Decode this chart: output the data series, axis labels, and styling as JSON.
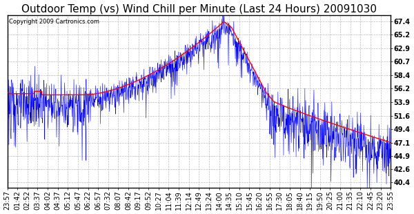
{
  "title": "Outdoor Temp (vs) Wind Chill per Minute (Last 24 Hours) 20091030",
  "copyright_text": "Copyright 2009 Cartronics.com",
  "y_ticks": [
    40.4,
    42.6,
    44.9,
    47.1,
    49.4,
    51.6,
    53.9,
    56.2,
    58.4,
    60.7,
    62.9,
    65.2,
    67.4
  ],
  "x_labels": [
    "23:57",
    "01:42",
    "02:52",
    "03:37",
    "04:02",
    "04:37",
    "05:12",
    "05:47",
    "06:22",
    "06:57",
    "07:32",
    "08:07",
    "08:42",
    "09:17",
    "09:52",
    "10:27",
    "11:04",
    "11:39",
    "12:14",
    "12:49",
    "13:24",
    "14:00",
    "14:35",
    "15:10",
    "15:45",
    "16:20",
    "16:55",
    "17:30",
    "18:05",
    "18:40",
    "19:15",
    "19:50",
    "20:25",
    "21:00",
    "21:35",
    "22:10",
    "22:45",
    "23:20",
    "23:55"
  ],
  "ylim": [
    39.5,
    68.5
  ],
  "blue_color": "#0000FF",
  "red_color": "#FF0000",
  "grid_color": "#BBBBBB",
  "background_color": "#FFFFFF",
  "title_fontsize": 11,
  "axis_fontsize": 7,
  "copyright_fontsize": 6
}
